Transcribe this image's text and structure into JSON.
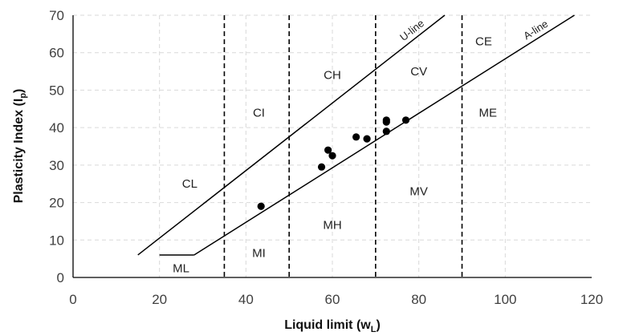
{
  "chart_data": {
    "type": "scatter",
    "xlabel": "Liquid limit (w",
    "xlabel_sub": "L",
    "xlabel_end": ")",
    "ylabel": "Plasticity Index (I",
    "ylabel_sub": "p",
    "ylabel_end": ")",
    "xlim": [
      0,
      120
    ],
    "ylim": [
      0,
      70
    ],
    "xticks": [
      "0",
      "20",
      "40",
      "60",
      "80",
      "100",
      "120"
    ],
    "yticks": [
      "0",
      "10",
      "20",
      "30",
      "40",
      "50",
      "60",
      "70"
    ],
    "grid": true,
    "points": {
      "x": [
        43.5,
        57.5,
        59,
        60,
        65.5,
        68,
        72.5,
        72.5,
        72.5,
        77
      ],
      "y": [
        19,
        29.5,
        34,
        32.5,
        37.5,
        37,
        39,
        41.5,
        42,
        42
      ]
    },
    "lines": [
      {
        "name": "U-line",
        "x": [
          15,
          86
        ],
        "y": [
          6,
          70
        ]
      },
      {
        "name": "A-line",
        "x": [
          28,
          116
        ],
        "y": [
          6,
          70
        ]
      },
      {
        "name": "",
        "x": [
          20,
          28
        ],
        "y": [
          6,
          6
        ]
      }
    ],
    "boundaries": [
      35,
      50,
      70,
      90
    ],
    "zones": [
      {
        "label": "CL",
        "x": 27,
        "y": 25
      },
      {
        "label": "CI",
        "x": 43,
        "y": 44
      },
      {
        "label": "CH",
        "x": 60,
        "y": 54
      },
      {
        "label": "CV",
        "x": 80,
        "y": 55
      },
      {
        "label": "CE",
        "x": 95,
        "y": 63
      },
      {
        "label": "ML",
        "x": 25,
        "y": 2.5
      },
      {
        "label": "MI",
        "x": 43,
        "y": 6.5
      },
      {
        "label": "MH",
        "x": 60,
        "y": 14
      },
      {
        "label": "MV",
        "x": 80,
        "y": 23
      },
      {
        "label": "ME",
        "x": 96,
        "y": 44
      }
    ]
  }
}
